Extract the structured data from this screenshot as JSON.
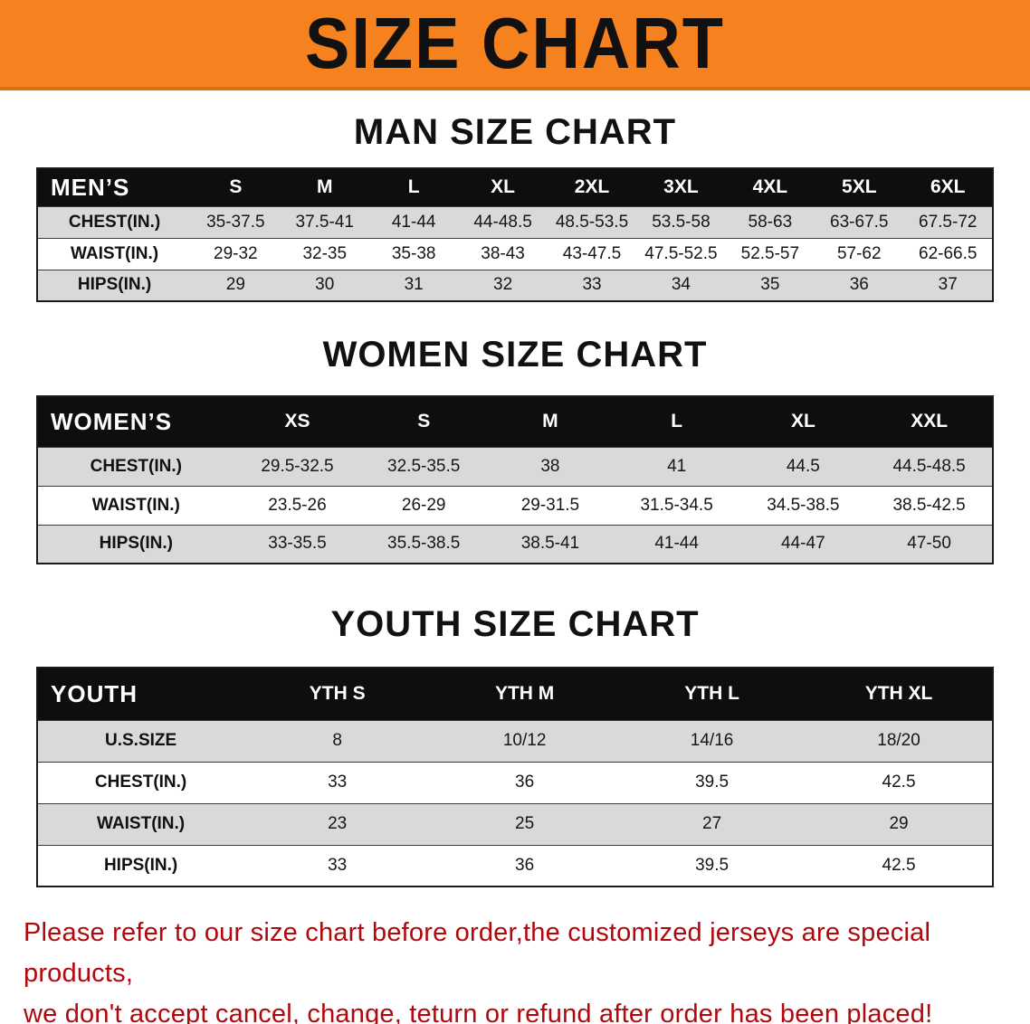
{
  "banner": {
    "title": "SIZE CHART",
    "bg_color": "#f6821f",
    "text_color": "#111111"
  },
  "colors": {
    "table_header_bg": "#0e0e0e",
    "table_header_text": "#ffffff",
    "row_alt_bg": "#d9d9d9",
    "footnote_text": "#b2070c"
  },
  "sections": [
    {
      "id": "men",
      "heading": "MAN SIZE CHART",
      "table": {
        "corner": "MEN’S",
        "columns": [
          "S",
          "M",
          "L",
          "XL",
          "2XL",
          "3XL",
          "4XL",
          "5XL",
          "6XL"
        ],
        "rows": [
          {
            "label": "CHEST(IN.)",
            "values": [
              "35-37.5",
              "37.5-41",
              "41-44",
              "44-48.5",
              "48.5-53.5",
              "53.5-58",
              "58-63",
              "63-67.5",
              "67.5-72"
            ]
          },
          {
            "label": "WAIST(IN.)",
            "values": [
              "29-32",
              "32-35",
              "35-38",
              "38-43",
              "43-47.5",
              "47.5-52.5",
              "52.5-57",
              "57-62",
              "62-66.5"
            ]
          },
          {
            "label": "HIPS(IN.)",
            "values": [
              "29",
              "30",
              "31",
              "32",
              "33",
              "34",
              "35",
              "36",
              "37"
            ]
          }
        ]
      }
    },
    {
      "id": "women",
      "heading": "WOMEN SIZE CHART",
      "table": {
        "corner": "WOMEN’S",
        "columns": [
          "XS",
          "S",
          "M",
          "L",
          "XL",
          "XXL"
        ],
        "rows": [
          {
            "label": "CHEST(IN.)",
            "values": [
              "29.5-32.5",
              "32.5-35.5",
              "38",
              "41",
              "44.5",
              "44.5-48.5"
            ]
          },
          {
            "label": "WAIST(IN.)",
            "values": [
              "23.5-26",
              "26-29",
              "29-31.5",
              "31.5-34.5",
              "34.5-38.5",
              "38.5-42.5"
            ]
          },
          {
            "label": "HIPS(IN.)",
            "values": [
              "33-35.5",
              "35.5-38.5",
              "38.5-41",
              "41-44",
              "44-47",
              "47-50"
            ]
          }
        ]
      }
    },
    {
      "id": "youth",
      "heading": "YOUTH SIZE CHART",
      "table": {
        "corner": "YOUTH",
        "columns": [
          "YTH S",
          "YTH M",
          "YTH L",
          "YTH XL"
        ],
        "rows": [
          {
            "label": "U.S.SIZE",
            "values": [
              "8",
              "10/12",
              "14/16",
              "18/20"
            ]
          },
          {
            "label": "CHEST(IN.)",
            "values": [
              "33",
              "36",
              "39.5",
              "42.5"
            ]
          },
          {
            "label": "WAIST(IN.)",
            "values": [
              "23",
              "25",
              "27",
              "29"
            ]
          },
          {
            "label": "HIPS(IN.)",
            "values": [
              "33",
              "36",
              "39.5",
              "42.5"
            ]
          }
        ]
      }
    }
  ],
  "footnote": {
    "line1": "Please refer to our size chart before order,the customized jerseys are special products,",
    "line2": "we don't accept cancel, change, teturn or refund after order has been placed!"
  }
}
